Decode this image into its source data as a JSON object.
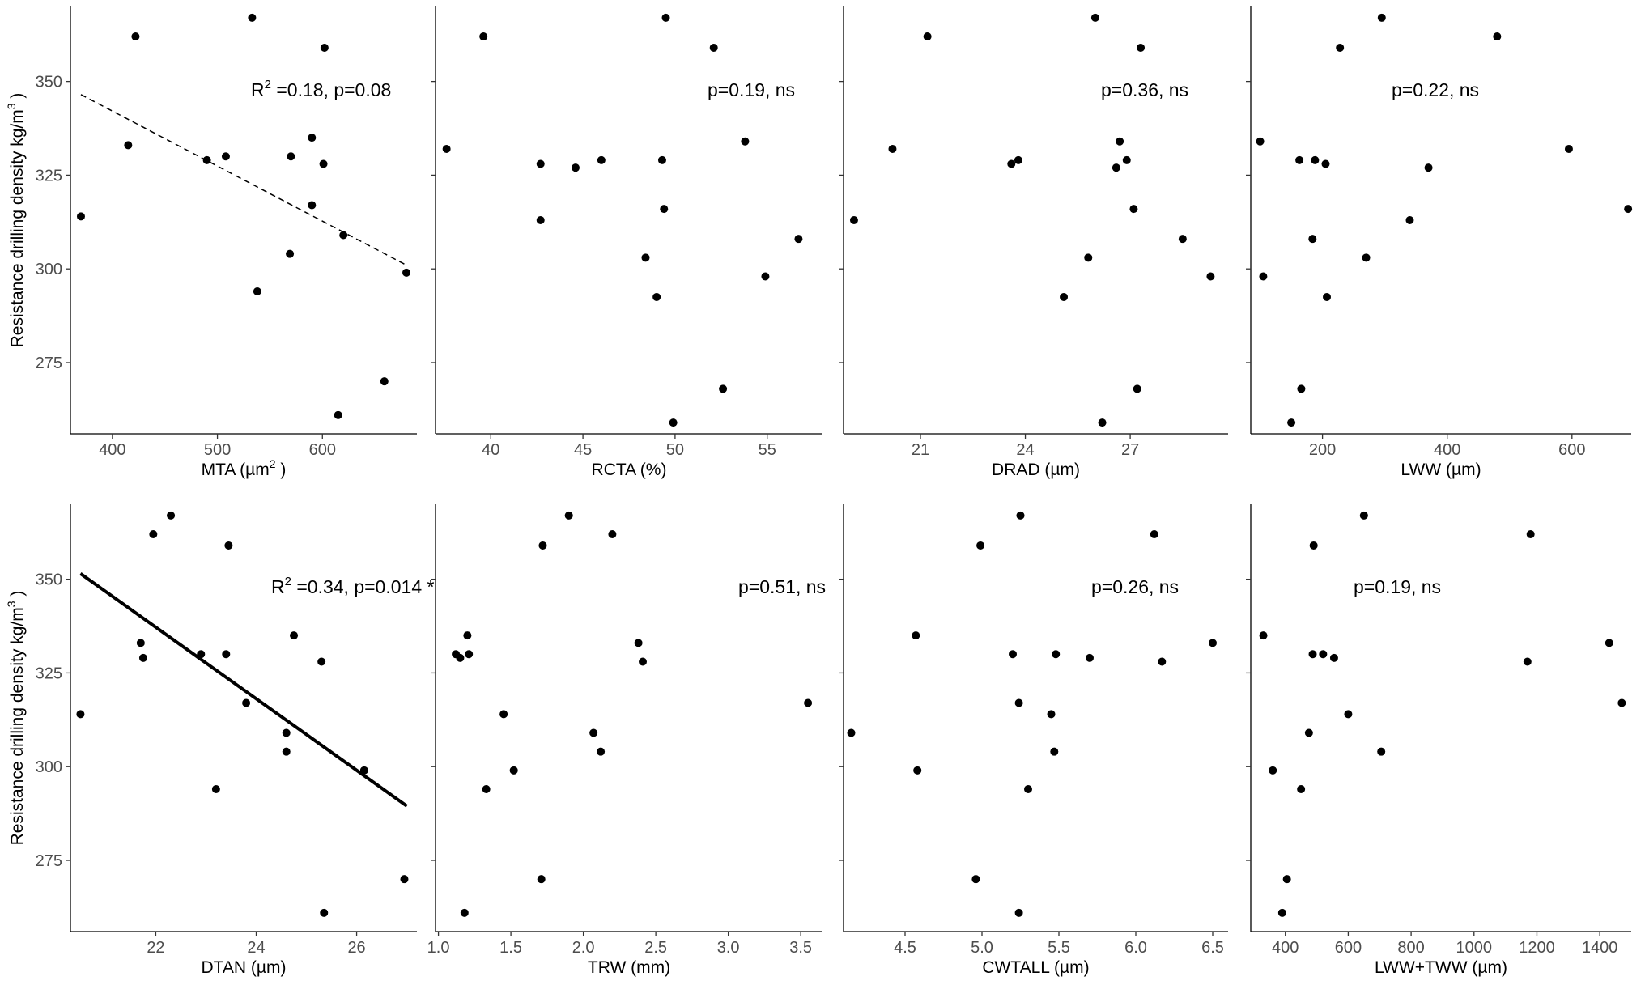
{
  "y_axis_title": "Resistance drilling density kg/m",
  "y_axis_title_sup": "3",
  "y_axis_title_close": " )",
  "chart_data": [
    {
      "type": "scatter",
      "xlabel": "MTA (µm",
      "xlabel_sup": "2",
      "xlabel_end": " )",
      "xlim": [
        360,
        690
      ],
      "xticks": [
        400,
        500,
        600
      ],
      "xtick_labels": [
        "400",
        "500",
        "600"
      ],
      "ylim": [
        256,
        370
      ],
      "yticks": [
        275,
        300,
        325,
        350
      ],
      "ytick_labels": [
        "275",
        "300",
        "325",
        "350"
      ],
      "annotation": {
        "prefix": "R",
        "sup": "2",
        "text": " =0.18, p=0.08",
        "anchor": "right"
      },
      "fit": {
        "x": [
          370,
          680
        ],
        "y": [
          346.5,
          301
        ],
        "style": "dashed"
      },
      "x": [
        370,
        415,
        422,
        490,
        508,
        533,
        538,
        569,
        570,
        590,
        590,
        601,
        602,
        615,
        620,
        659,
        680
      ],
      "y": [
        314,
        333,
        362,
        329,
        330,
        367,
        294,
        304,
        330,
        335,
        317,
        328,
        359,
        261,
        309,
        270,
        299
      ]
    },
    {
      "type": "scatter",
      "xlabel": "RCTA (%)",
      "xlim": [
        37,
        58
      ],
      "xticks": [
        40,
        45,
        50,
        55
      ],
      "xtick_labels": [
        "40",
        "45",
        "50",
        "55"
      ],
      "ylim": [
        256,
        370
      ],
      "yticks": [
        275,
        300,
        325,
        350
      ],
      "annotation": {
        "text": "p=0.19, ns",
        "anchor": "middle"
      },
      "x": [
        37.6,
        39.6,
        42.7,
        42.7,
        44.6,
        46.0,
        48.4,
        49.0,
        49.3,
        49.4,
        49.5,
        49.9,
        52.1,
        52.6,
        53.8,
        54.9,
        56.7
      ],
      "y": [
        332,
        362,
        328,
        313,
        327,
        329,
        303,
        292.5,
        329,
        316,
        367,
        259,
        359,
        268,
        334,
        298,
        308
      ]
    },
    {
      "type": "scatter",
      "xlabel": "DRAD (µm)",
      "xlim": [
        18.8,
        29.8
      ],
      "xticks": [
        21,
        24,
        27
      ],
      "xtick_labels": [
        "21",
        "24",
        "27"
      ],
      "ylim": [
        256,
        370
      ],
      "yticks": [
        275,
        300,
        325,
        350
      ],
      "annotation": {
        "text": "p=0.36, ns",
        "anchor": "middle"
      },
      "x": [
        19.1,
        20.2,
        21.2,
        23.6,
        23.8,
        25.1,
        25.8,
        26.0,
        26.2,
        26.6,
        26.7,
        26.9,
        27.1,
        27.2,
        27.3,
        28.5,
        29.3
      ],
      "y": [
        313,
        332,
        362,
        328,
        329,
        292.5,
        303,
        367,
        259,
        327,
        334,
        329,
        316,
        268,
        359,
        308,
        298
      ]
    },
    {
      "type": "scatter",
      "xlabel": "LWW (µm)",
      "xlim": [
        85,
        695
      ],
      "xticks": [
        200,
        400,
        600
      ],
      "xtick_labels": [
        "200",
        "400",
        "600"
      ],
      "ylim": [
        256,
        370
      ],
      "yticks": [
        275,
        300,
        325,
        350
      ],
      "annotation": {
        "text": "p=0.22, ns",
        "anchor": "middle"
      },
      "x": [
        100,
        105,
        150,
        163,
        166,
        184,
        188,
        205,
        207,
        228,
        270,
        295,
        340,
        370,
        480,
        595,
        690
      ],
      "y": [
        334,
        298,
        259,
        329,
        268,
        308,
        329,
        328,
        292.5,
        359,
        303,
        367,
        313,
        327,
        362,
        332,
        316
      ]
    },
    {
      "type": "scatter",
      "xlabel": "DTAN (µm)",
      "xlim": [
        20.3,
        27.2
      ],
      "xticks": [
        22,
        24,
        26
      ],
      "xtick_labels": [
        "22",
        "24",
        "26"
      ],
      "ylim": [
        256,
        370
      ],
      "yticks": [
        275,
        300,
        325,
        350
      ],
      "ytick_labels": [
        "275",
        "300",
        "325",
        "350"
      ],
      "annotation": {
        "prefix": "R",
        "sup": "2",
        "text": " =0.34, p=0.014 *",
        "anchor": "middle"
      },
      "fit": {
        "x": [
          20.5,
          27.0
        ],
        "y": [
          351.5,
          289.5
        ],
        "style": "solid"
      },
      "x": [
        20.5,
        21.7,
        21.75,
        21.95,
        22.3,
        22.9,
        23.2,
        23.4,
        23.45,
        23.8,
        24.6,
        24.6,
        24.75,
        25.3,
        25.35,
        26.15,
        26.95
      ],
      "y": [
        314,
        333,
        329,
        362,
        367,
        330,
        294,
        330,
        359,
        317,
        309,
        304,
        335,
        328,
        261,
        299,
        270
      ]
    },
    {
      "type": "scatter",
      "xlabel": "TRW (mm)",
      "xlim": [
        0.98,
        3.65
      ],
      "xticks": [
        1.0,
        1.5,
        2.0,
        2.5,
        3.0,
        3.5
      ],
      "xtick_labels": [
        "1.0",
        "1.5",
        "2.0",
        "2.5",
        "3.0",
        "3.5"
      ],
      "ylim": [
        256,
        370
      ],
      "yticks": [
        275,
        300,
        325,
        350
      ],
      "annotation": {
        "text": "p=0.51, ns",
        "anchor": "middle"
      },
      "x": [
        1.12,
        1.15,
        1.18,
        1.2,
        1.21,
        1.33,
        1.45,
        1.52,
        1.71,
        1.72,
        1.9,
        2.07,
        2.12,
        2.2,
        2.38,
        2.41,
        3.55
      ],
      "y": [
        330,
        329,
        261,
        335,
        330,
        294,
        314,
        299,
        270,
        359,
        367,
        309,
        304,
        362,
        333,
        328,
        317
      ]
    },
    {
      "type": "scatter",
      "xlabel": "CWTALL (µm)",
      "xlim": [
        4.1,
        6.6
      ],
      "xticks": [
        4.5,
        5.0,
        5.5,
        6.0,
        6.5
      ],
      "xtick_labels": [
        "4.5",
        "5.0",
        "5.5",
        "6.0",
        "6.5"
      ],
      "ylim": [
        256,
        370
      ],
      "yticks": [
        275,
        300,
        325,
        350
      ],
      "annotation": {
        "text": "p=0.26, ns",
        "anchor": "middle"
      },
      "x": [
        4.15,
        4.57,
        4.58,
        4.96,
        4.99,
        5.2,
        5.24,
        5.24,
        5.25,
        5.3,
        5.45,
        5.47,
        5.48,
        5.7,
        6.12,
        6.17,
        6.5
      ],
      "y": [
        309,
        335,
        299,
        270,
        359,
        330,
        261,
        317,
        367,
        294,
        314,
        304,
        330,
        329,
        362,
        328,
        333
      ]
    },
    {
      "type": "scatter",
      "xlabel": "LWW+TWW (µm)",
      "xlim": [
        290,
        1500
      ],
      "xticks": [
        400,
        600,
        800,
        1000,
        1200,
        1400
      ],
      "xtick_labels": [
        "400",
        "600",
        "800",
        "1000",
        "1200",
        "1400"
      ],
      "ylim": [
        256,
        370
      ],
      "yticks": [
        275,
        300,
        325,
        350
      ],
      "annotation": {
        "text": "p=0.19, ns",
        "anchor": "middle"
      },
      "x": [
        330,
        360,
        390,
        405,
        450,
        475,
        487,
        490,
        520,
        555,
        600,
        650,
        705,
        1170,
        1180,
        1430,
        1470
      ],
      "y": [
        335,
        299,
        261,
        270,
        294,
        309,
        330,
        359,
        330,
        329,
        314,
        367,
        304,
        328,
        362,
        333,
        317
      ]
    }
  ]
}
